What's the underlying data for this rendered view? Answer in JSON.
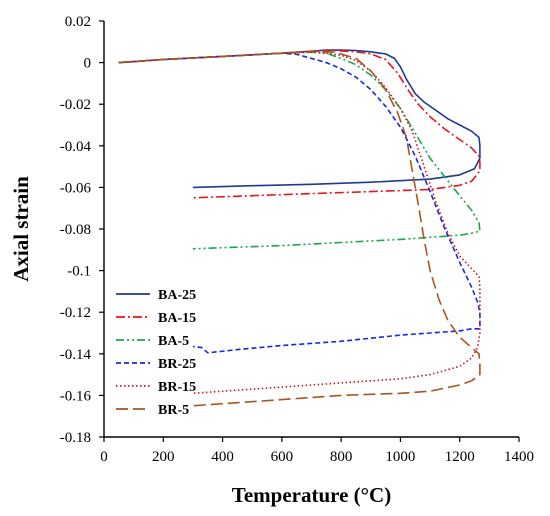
{
  "chart_data": {
    "type": "line",
    "xlabel": "Temperature (°C)",
    "ylabel": "Axial strain",
    "xlim": [
      0,
      1400
    ],
    "ylim": [
      -0.18,
      0.02
    ],
    "xticks": [
      "0",
      "200",
      "400",
      "600",
      "800",
      "1000",
      "1200",
      "1400"
    ],
    "yticks": [
      "0.02",
      "0",
      "-0.02",
      "-0.04",
      "-0.06",
      "-0.08",
      "-0.1",
      "-0.12",
      "-0.14",
      "-0.16",
      "-0.18"
    ],
    "grid": false,
    "legend_position": "left",
    "series": [
      {
        "name": "BA-25",
        "color": "#1f3a93",
        "dash": "solid",
        "points": [
          [
            50,
            0
          ],
          [
            200,
            0.0015
          ],
          [
            400,
            0.003
          ],
          [
            600,
            0.0045
          ],
          [
            700,
            0.0055
          ],
          [
            750,
            0.006
          ],
          [
            800,
            0.006
          ],
          [
            850,
            0.0058
          ],
          [
            900,
            0.0052
          ],
          [
            950,
            0.0042
          ],
          [
            980,
            0.002
          ],
          [
            1000,
            -0.002
          ],
          [
            1020,
            -0.008
          ],
          [
            1050,
            -0.015
          ],
          [
            1080,
            -0.019
          ],
          [
            1120,
            -0.023
          ],
          [
            1160,
            -0.027
          ],
          [
            1200,
            -0.03
          ],
          [
            1240,
            -0.033
          ],
          [
            1265,
            -0.036
          ],
          [
            1268,
            -0.04
          ],
          [
            1268,
            -0.046
          ],
          [
            1250,
            -0.051
          ],
          [
            1200,
            -0.054
          ],
          [
            1100,
            -0.056
          ],
          [
            900,
            -0.0575
          ],
          [
            700,
            -0.0585
          ],
          [
            500,
            -0.0592
          ],
          [
            300,
            -0.06
          ]
        ]
      },
      {
        "name": "BA-15",
        "color": "#e8141a",
        "dash": "dashdot",
        "points": [
          [
            50,
            0
          ],
          [
            200,
            0.0015
          ],
          [
            400,
            0.003
          ],
          [
            600,
            0.0045
          ],
          [
            700,
            0.0055
          ],
          [
            780,
            0.0058
          ],
          [
            850,
            0.0052
          ],
          [
            900,
            0.0042
          ],
          [
            950,
            0.0015
          ],
          [
            990,
            -0.005
          ],
          [
            1030,
            -0.014
          ],
          [
            1060,
            -0.02
          ],
          [
            1100,
            -0.026
          ],
          [
            1150,
            -0.032
          ],
          [
            1200,
            -0.037
          ],
          [
            1240,
            -0.041
          ],
          [
            1265,
            -0.045
          ],
          [
            1268,
            -0.048
          ],
          [
            1268,
            -0.052
          ],
          [
            1240,
            -0.057
          ],
          [
            1200,
            -0.059
          ],
          [
            1100,
            -0.061
          ],
          [
            900,
            -0.062
          ],
          [
            700,
            -0.063
          ],
          [
            500,
            -0.064
          ],
          [
            300,
            -0.065
          ]
        ]
      },
      {
        "name": "BA-5",
        "color": "#18a84a",
        "dash": "dashdotdot",
        "points": [
          [
            50,
            0
          ],
          [
            200,
            0.0015
          ],
          [
            400,
            0.003
          ],
          [
            600,
            0.0045
          ],
          [
            700,
            0.005
          ],
          [
            750,
            0.0045
          ],
          [
            800,
            0.002
          ],
          [
            850,
            -0.001
          ],
          [
            900,
            -0.006
          ],
          [
            950,
            -0.013
          ],
          [
            1000,
            -0.022
          ],
          [
            1050,
            -0.034
          ],
          [
            1100,
            -0.046
          ],
          [
            1150,
            -0.055
          ],
          [
            1200,
            -0.064
          ],
          [
            1240,
            -0.071
          ],
          [
            1265,
            -0.077
          ],
          [
            1268,
            -0.081
          ],
          [
            1240,
            -0.082
          ],
          [
            1200,
            -0.083
          ],
          [
            1000,
            -0.085
          ],
          [
            800,
            -0.0865
          ],
          [
            600,
            -0.088
          ],
          [
            400,
            -0.089
          ],
          [
            300,
            -0.0895
          ]
        ]
      },
      {
        "name": "BR-25",
        "color": "#1428e8",
        "dash": "dash",
        "points": [
          [
            50,
            0
          ],
          [
            200,
            0.0015
          ],
          [
            400,
            0.003
          ],
          [
            600,
            0.0045
          ],
          [
            650,
            0.004
          ],
          [
            700,
            0.002
          ],
          [
            750,
            0
          ],
          [
            800,
            -0.003
          ],
          [
            850,
            -0.007
          ],
          [
            900,
            -0.013
          ],
          [
            950,
            -0.021
          ],
          [
            1000,
            -0.031
          ],
          [
            1050,
            -0.045
          ],
          [
            1100,
            -0.062
          ],
          [
            1150,
            -0.08
          ],
          [
            1200,
            -0.096
          ],
          [
            1240,
            -0.108
          ],
          [
            1260,
            -0.115
          ],
          [
            1268,
            -0.12
          ],
          [
            1268,
            -0.128
          ],
          [
            1240,
            -0.128
          ],
          [
            1200,
            -0.129
          ],
          [
            1100,
            -0.13
          ],
          [
            1000,
            -0.131
          ],
          [
            900,
            -0.1325
          ],
          [
            800,
            -0.134
          ],
          [
            600,
            -0.136
          ],
          [
            450,
            -0.138
          ],
          [
            350,
            -0.1395
          ],
          [
            330,
            -0.137
          ],
          [
            300,
            -0.1365
          ]
        ]
      },
      {
        "name": "BR-15",
        "color": "#c8142a",
        "dash": "dot",
        "points": [
          [
            50,
            0
          ],
          [
            200,
            0.0015
          ],
          [
            400,
            0.003
          ],
          [
            600,
            0.0045
          ],
          [
            700,
            0.005
          ],
          [
            750,
            0.0045
          ],
          [
            800,
            0.0035
          ],
          [
            850,
            0.001
          ],
          [
            900,
            -0.004
          ],
          [
            950,
            -0.012
          ],
          [
            1000,
            -0.022
          ],
          [
            1040,
            -0.033
          ],
          [
            1080,
            -0.05
          ],
          [
            1120,
            -0.067
          ],
          [
            1160,
            -0.082
          ],
          [
            1200,
            -0.093
          ],
          [
            1240,
            -0.099
          ],
          [
            1265,
            -0.103
          ],
          [
            1268,
            -0.108
          ],
          [
            1268,
            -0.13
          ],
          [
            1260,
            -0.137
          ],
          [
            1240,
            -0.142
          ],
          [
            1200,
            -0.146
          ],
          [
            1100,
            -0.15
          ],
          [
            1000,
            -0.152
          ],
          [
            800,
            -0.154
          ],
          [
            600,
            -0.156
          ],
          [
            400,
            -0.158
          ],
          [
            300,
            -0.159
          ]
        ]
      },
      {
        "name": "BR-5",
        "color": "#a8561e",
        "dash": "longdash",
        "points": [
          [
            50,
            0
          ],
          [
            200,
            0.0015
          ],
          [
            400,
            0.003
          ],
          [
            600,
            0.0045
          ],
          [
            700,
            0.0055
          ],
          [
            780,
            0.005
          ],
          [
            850,
            0.002
          ],
          [
            900,
            -0.004
          ],
          [
            950,
            -0.013
          ],
          [
            990,
            -0.024
          ],
          [
            1020,
            -0.036
          ],
          [
            1040,
            -0.052
          ],
          [
            1060,
            -0.068
          ],
          [
            1080,
            -0.085
          ],
          [
            1100,
            -0.1
          ],
          [
            1130,
            -0.114
          ],
          [
            1160,
            -0.124
          ],
          [
            1200,
            -0.132
          ],
          [
            1240,
            -0.137
          ],
          [
            1265,
            -0.14
          ],
          [
            1268,
            -0.145
          ],
          [
            1268,
            -0.15
          ],
          [
            1240,
            -0.153
          ],
          [
            1200,
            -0.155
          ],
          [
            1100,
            -0.158
          ],
          [
            1000,
            -0.159
          ],
          [
            800,
            -0.16
          ],
          [
            600,
            -0.162
          ],
          [
            400,
            -0.164
          ],
          [
            300,
            -0.165
          ]
        ]
      }
    ]
  }
}
